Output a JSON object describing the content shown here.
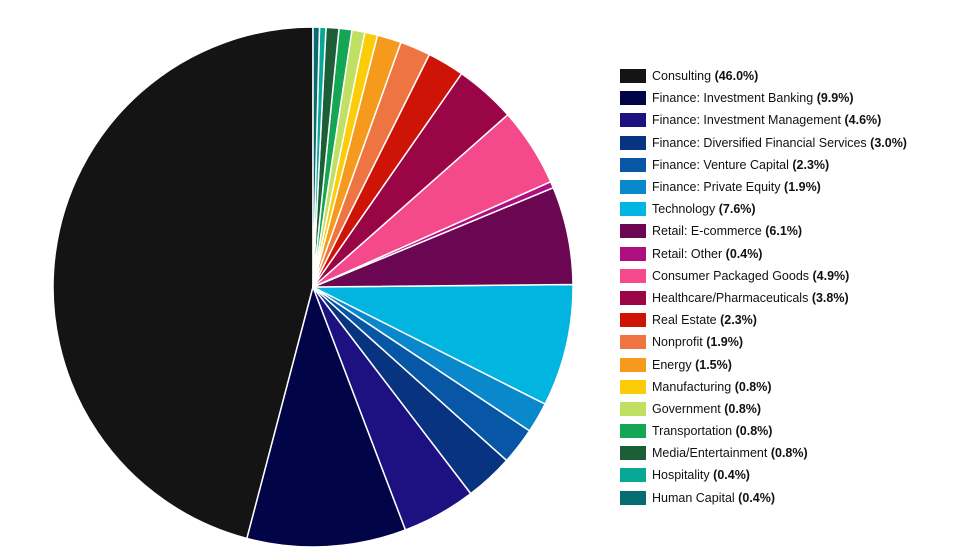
{
  "chart_data": {
    "type": "pie",
    "start_angle_deg": 0,
    "direction": "counterclockwise",
    "legend_position": "right",
    "slices": [
      {
        "label": "Consulting",
        "value": 46.0,
        "pct_text": "(46.0%)",
        "color": "#141414"
      },
      {
        "label": "Finance: Investment Banking",
        "value": 9.9,
        "pct_text": "(9.9%)",
        "color": "#020448"
      },
      {
        "label": "Finance: Investment Management",
        "value": 4.6,
        "pct_text": "(4.6%)",
        "color": "#1d1081"
      },
      {
        "label": "Finance: Diversified Financial Services",
        "value": 3.0,
        "pct_text": "(3.0%)",
        "color": "#073380"
      },
      {
        "label": "Finance: Venture Capital",
        "value": 2.3,
        "pct_text": "(2.3%)",
        "color": "#0857a6"
      },
      {
        "label": "Finance: Private Equity",
        "value": 1.9,
        "pct_text": "(1.9%)",
        "color": "#0a88cc"
      },
      {
        "label": "Technology",
        "value": 7.6,
        "pct_text": "(7.6%)",
        "color": "#02b5e0"
      },
      {
        "label": "Retail: E-commerce",
        "value": 6.1,
        "pct_text": "(6.1%)",
        "color": "#6a0652"
      },
      {
        "label": "Retail: Other",
        "value": 0.4,
        "pct_text": "(0.4%)",
        "color": "#ae0f80"
      },
      {
        "label": "Consumer Packaged Goods",
        "value": 4.9,
        "pct_text": "(4.9%)",
        "color": "#f4498a"
      },
      {
        "label": "Healthcare/Pharmaceuticals",
        "value": 3.8,
        "pct_text": "(3.8%)",
        "color": "#9a0545"
      },
      {
        "label": "Real Estate",
        "value": 2.3,
        "pct_text": "(2.3%)",
        "color": "#ce1407"
      },
      {
        "label": "Nonprofit",
        "value": 1.9,
        "pct_text": "(1.9%)",
        "color": "#ee7541"
      },
      {
        "label": "Energy",
        "value": 1.5,
        "pct_text": "(1.5%)",
        "color": "#f59a1c"
      },
      {
        "label": "Manufacturing",
        "value": 0.8,
        "pct_text": "(0.8%)",
        "color": "#fccc08"
      },
      {
        "label": "Government",
        "value": 0.8,
        "pct_text": "(0.8%)",
        "color": "#bfe062"
      },
      {
        "label": "Transportation",
        "value": 0.8,
        "pct_text": "(0.8%)",
        "color": "#14a654"
      },
      {
        "label": "Media/Entertainment",
        "value": 0.8,
        "pct_text": "(0.8%)",
        "color": "#1b5e38"
      },
      {
        "label": "Hospitality",
        "value": 0.4,
        "pct_text": "(0.4%)",
        "color": "#07a895"
      },
      {
        "label": "Human Capital",
        "value": 0.4,
        "pct_text": "(0.4%)",
        "color": "#066c71"
      }
    ]
  }
}
